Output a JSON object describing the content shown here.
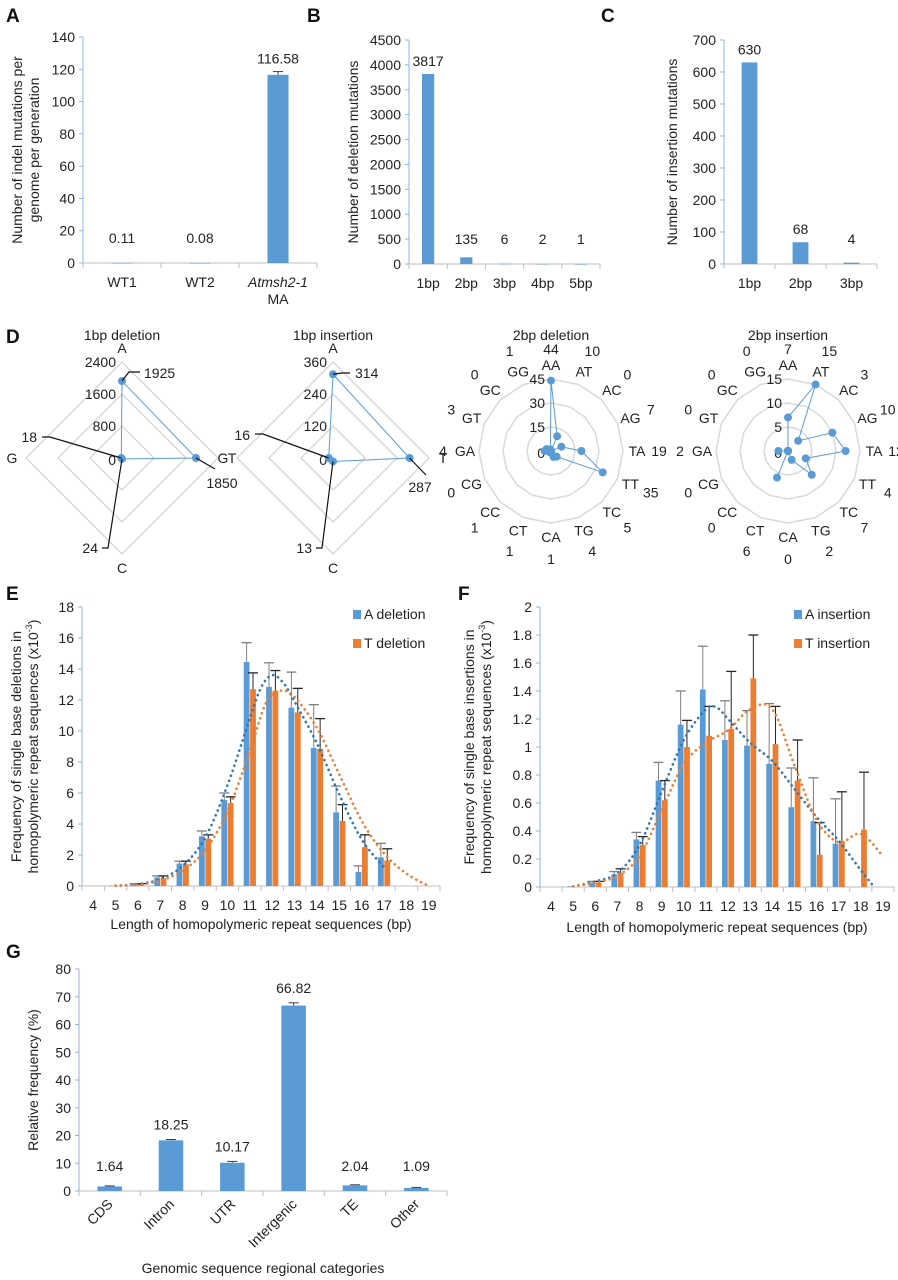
{
  "colors": {
    "blue": "#5b9bd5",
    "orange": "#ed7d31",
    "axis": "#8db4e2",
    "grid": "#d9d9d9",
    "dark_blue_trend": "#2e75b6",
    "errbar_dark": "#404040"
  },
  "chart_data": [
    {
      "panel": "A",
      "type": "bar",
      "categories": [
        "WT1",
        "WT2",
        "Atmsh2-1 MA"
      ],
      "category_lines": [
        [
          "WT1"
        ],
        [
          "WT2"
        ],
        [
          "Atmsh2-1",
          "MA"
        ]
      ],
      "values": [
        0.11,
        0.08,
        116.58
      ],
      "data_labels": [
        "0.11",
        "0.08",
        "116.58"
      ],
      "errors": [
        0,
        0,
        2
      ],
      "ylabel": "Number of indel mutations per genome per generation",
      "ylabel_lines": [
        "Number of indel mutations per",
        "genome per generation"
      ],
      "ylim": [
        0,
        140
      ],
      "yticks": [
        0,
        20,
        40,
        60,
        80,
        100,
        120,
        140
      ]
    },
    {
      "panel": "B",
      "type": "bar",
      "categories": [
        "1bp",
        "2bp",
        "3bp",
        "4bp",
        "5bp"
      ],
      "values": [
        3817,
        135,
        6,
        2,
        1
      ],
      "data_labels": [
        "3817",
        "135",
        "6",
        "2",
        "1"
      ],
      "ylabel": "Number of deletion mutations",
      "ylim": [
        0,
        4500
      ],
      "yticks": [
        0,
        500,
        1000,
        1500,
        2000,
        2500,
        3000,
        3500,
        4000,
        4500
      ]
    },
    {
      "panel": "C",
      "type": "bar",
      "categories": [
        "1bp",
        "2bp",
        "3bp"
      ],
      "values": [
        630,
        68,
        4
      ],
      "data_labels": [
        "630",
        "68",
        "4"
      ],
      "ylabel": "Number of insertion mutations",
      "ylim": [
        0,
        700
      ],
      "yticks": [
        0,
        100,
        200,
        300,
        400,
        500,
        600,
        700
      ]
    },
    {
      "panel": "D",
      "type": "radar",
      "title": "1bp deletion",
      "axes": [
        "A",
        "T",
        "C",
        "G"
      ],
      "values": [
        1925,
        1850,
        24,
        18
      ],
      "rlim": [
        0,
        2400
      ],
      "rticks": [
        0,
        800,
        1600,
        2400
      ]
    },
    {
      "panel": "D",
      "type": "radar",
      "title": "1bp insertion",
      "axes": [
        "A",
        "T",
        "C",
        "G"
      ],
      "values": [
        314,
        287,
        13,
        16
      ],
      "rlim": [
        0,
        360
      ],
      "rticks": [
        0,
        120,
        240,
        360
      ]
    },
    {
      "panel": "D",
      "type": "radar",
      "title": "2bp deletion",
      "axes": [
        "AA",
        "AT",
        "AC",
        "AG",
        "TA",
        "TT",
        "TC",
        "TG",
        "CA",
        "CT",
        "CC",
        "CG",
        "GA",
        "GT",
        "GC",
        "GG"
      ],
      "values": [
        44,
        10,
        0,
        7,
        19,
        35,
        5,
        4,
        1,
        1,
        1,
        0,
        4,
        3,
        0,
        1
      ],
      "rlim": [
        0,
        45
      ],
      "rticks": [
        0,
        15,
        30,
        45
      ]
    },
    {
      "panel": "D",
      "type": "radar",
      "title": "2bp insertion",
      "axes": [
        "AA",
        "AT",
        "AC",
        "AG",
        "TA",
        "TT",
        "TC",
        "TG",
        "CA",
        "CT",
        "CC",
        "CG",
        "GA",
        "GT",
        "GC",
        "GG"
      ],
      "values": [
        7,
        15,
        3,
        10,
        12,
        4,
        7,
        2,
        0,
        6,
        0,
        0,
        2,
        0,
        0,
        0
      ],
      "rlim": [
        0,
        15
      ],
      "rticks": [
        0,
        5,
        10,
        15
      ]
    },
    {
      "panel": "E",
      "type": "bar",
      "categories": [
        "4",
        "5",
        "6",
        "7",
        "8",
        "9",
        "10",
        "11",
        "12",
        "13",
        "14",
        "15",
        "16",
        "17",
        "18",
        "19"
      ],
      "series": [
        {
          "name": "A deletion",
          "values": [
            0,
            0.02,
            0.1,
            0.55,
            1.45,
            3.2,
            5.55,
            14.45,
            12.85,
            11.5,
            8.9,
            4.75,
            0.9,
            1.85,
            0,
            0
          ],
          "errors": [
            0,
            0,
            0.05,
            0.1,
            0.15,
            0.35,
            0.45,
            1.25,
            1.55,
            2.3,
            2.8,
            1.7,
            0.4,
            0.9,
            0,
            0
          ]
        },
        {
          "name": "T deletion",
          "values": [
            0,
            0,
            0.1,
            0.5,
            1.4,
            3.05,
            5.35,
            12.7,
            12.6,
            11.2,
            8.85,
            4.2,
            2.5,
            1.65,
            0,
            0
          ],
          "errors": [
            0,
            0,
            0.05,
            0.15,
            0.2,
            0.25,
            0.4,
            1.05,
            1.3,
            1.55,
            1.95,
            1.05,
            0.8,
            0.75,
            0,
            0
          ]
        }
      ],
      "trendlines": [
        {
          "series": "A deletion",
          "style": "dotted",
          "points": [
            [
              5,
              0.02
            ],
            [
              6,
              0.12
            ],
            [
              7,
              0.45
            ],
            [
              8,
              1.3
            ],
            [
              9,
              3.1
            ],
            [
              10,
              6.5
            ],
            [
              11,
              10.8
            ],
            [
              11.5,
              12.8
            ],
            [
              12,
              13.6
            ],
            [
              12.5,
              13.1
            ],
            [
              13,
              11.9
            ],
            [
              14,
              9.2
            ],
            [
              15,
              5.9
            ],
            [
              16,
              3.0
            ],
            [
              17,
              1.2
            ]
          ]
        },
        {
          "series": "T deletion",
          "style": "dotted",
          "points": [
            [
              5,
              0.02
            ],
            [
              6,
              0.08
            ],
            [
              7,
              0.35
            ],
            [
              8,
              1.0
            ],
            [
              9,
              2.3
            ],
            [
              10,
              4.8
            ],
            [
              11,
              8.7
            ],
            [
              11.6,
              11.4
            ],
            [
              12,
              12.4
            ],
            [
              12.5,
              12.6
            ],
            [
              13,
              12.2
            ],
            [
              14,
              10.2
            ],
            [
              15,
              7.2
            ],
            [
              16,
              4.2
            ],
            [
              17,
              2.1
            ],
            [
              18,
              0.8
            ],
            [
              19,
              0
            ]
          ]
        }
      ],
      "xlabel": "Length of homopolymeric repeat sequences (bp)",
      "ylabel": "Frequency of single base deletions in homopolymeric repeat sequences (x10-3)",
      "ylabel_lines": [
        "Frequency of single base deletions in",
        "homopolymeric repeat sequences (x10",
        "-3",
        ")"
      ],
      "ylim": [
        0,
        18
      ],
      "yticks": [
        0,
        2,
        4,
        6,
        8,
        10,
        12,
        14,
        16,
        18
      ],
      "legend": "top-right"
    },
    {
      "panel": "F",
      "type": "bar",
      "categories": [
        "4",
        "5",
        "6",
        "7",
        "8",
        "9",
        "10",
        "11",
        "12",
        "13",
        "14",
        "15",
        "16",
        "17",
        "18",
        "19"
      ],
      "series": [
        {
          "name": "A insertion",
          "values": [
            0,
            0.005,
            0.03,
            0.09,
            0.34,
            0.76,
            1.16,
            1.41,
            1.05,
            1.01,
            0.88,
            0.57,
            0.47,
            0.31,
            0,
            0
          ],
          "errors": [
            0,
            0,
            0.01,
            0.02,
            0.05,
            0.13,
            0.24,
            0.31,
            0.28,
            0.25,
            0.43,
            0.28,
            0.31,
            0.32,
            0,
            0
          ]
        },
        {
          "name": "T insertion",
          "values": [
            0,
            0,
            0.03,
            0.1,
            0.3,
            0.62,
            1.0,
            1.08,
            1.13,
            1.49,
            1.02,
            0.76,
            0.23,
            0.33,
            0.41,
            0
          ],
          "errors": [
            0,
            0,
            0.01,
            0.03,
            0.06,
            0.14,
            0.19,
            0.21,
            0.41,
            0.31,
            0.27,
            0.29,
            0.23,
            0.35,
            0.41,
            0
          ]
        }
      ],
      "trendlines": [
        {
          "series": "A insertion",
          "style": "dotted",
          "points": [
            [
              5,
              0.005
            ],
            [
              6,
              0.04
            ],
            [
              7,
              0.1
            ],
            [
              8,
              0.3
            ],
            [
              9,
              0.68
            ],
            [
              10,
              1.05
            ],
            [
              11,
              1.27
            ],
            [
              11.5,
              1.28
            ],
            [
              12,
              1.2
            ],
            [
              13,
              1.03
            ],
            [
              14,
              0.9
            ],
            [
              15,
              0.7
            ],
            [
              16,
              0.5
            ],
            [
              17,
              0.33
            ],
            [
              18,
              0.12
            ],
            [
              18.6,
              0
            ]
          ]
        },
        {
          "series": "T insertion",
          "style": "dotted",
          "points": [
            [
              5,
              0.005
            ],
            [
              6,
              0.03
            ],
            [
              7,
              0.08
            ],
            [
              8,
              0.22
            ],
            [
              9,
              0.55
            ],
            [
              10,
              0.88
            ],
            [
              11,
              1.03
            ],
            [
              12,
              1.12
            ],
            [
              13,
              1.27
            ],
            [
              14,
              1.27
            ],
            [
              15,
              0.87
            ],
            [
              16,
              0.48
            ],
            [
              17,
              0.32
            ],
            [
              18,
              0.38
            ],
            [
              19,
              0.22
            ]
          ]
        }
      ],
      "xlabel": "Length of homopolymeric repeat sequences (bp)",
      "ylabel": "Frequency of single base insertions in homopolymeric repeat sequences (x10-3)",
      "ylabel_lines": [
        "Frequency of single base insertions in",
        "homopolymeric repeat sequences (x10",
        "-3",
        ")"
      ],
      "ylim": [
        0,
        2
      ],
      "yticks": [
        "0",
        "0.2",
        "0.4",
        "0.6",
        "0.8",
        "1",
        "1.2",
        "1.4",
        "1.6",
        "1.8",
        "2"
      ],
      "legend": "top-right"
    },
    {
      "panel": "G",
      "type": "bar",
      "categories": [
        "CDS",
        "Intron",
        "UTR",
        "Intergenic",
        "TE",
        "Other"
      ],
      "values": [
        1.64,
        18.25,
        10.17,
        66.82,
        2.04,
        1.09
      ],
      "data_labels": [
        "1.64",
        "18.25",
        "10.17",
        "66.82",
        "2.04",
        "1.09"
      ],
      "errors": [
        0.2,
        0.3,
        0.5,
        1.0,
        0.2,
        0.2
      ],
      "xlabel": "Genomic sequence regional categories",
      "ylabel": "Relative frequency (%)",
      "ylim": [
        0,
        80
      ],
      "yticks": [
        0,
        10,
        20,
        30,
        40,
        50,
        60,
        70,
        80
      ]
    }
  ],
  "panel_letters": [
    "A",
    "B",
    "C",
    "D",
    "E",
    "F",
    "G"
  ]
}
